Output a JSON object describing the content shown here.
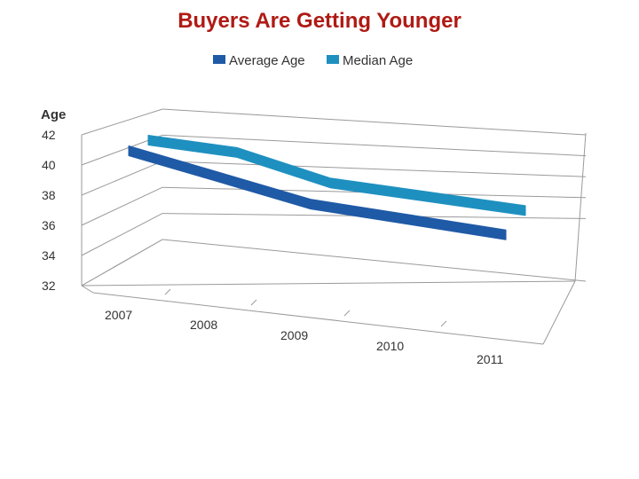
{
  "chart_data": {
    "type": "line",
    "title": "Buyers Are Getting Younger",
    "ylabel": "Age",
    "xlabel": "",
    "categories": [
      "2007",
      "2008",
      "2009",
      "2010",
      "2011"
    ],
    "ylim": [
      32,
      42
    ],
    "yticks": [
      "32",
      "34",
      "36",
      "38",
      "40",
      "42"
    ],
    "grid": true,
    "legend": "top",
    "series": [
      {
        "name": "Average Age",
        "values": [
          41,
          39.4,
          37.7,
          36.8,
          35.9
        ],
        "color": "#1f5aa6"
      },
      {
        "name": "Median Age",
        "values": [
          41,
          40.3,
          38.4,
          37.6,
          36.8
        ],
        "color": "#1e90c0"
      }
    ]
  }
}
